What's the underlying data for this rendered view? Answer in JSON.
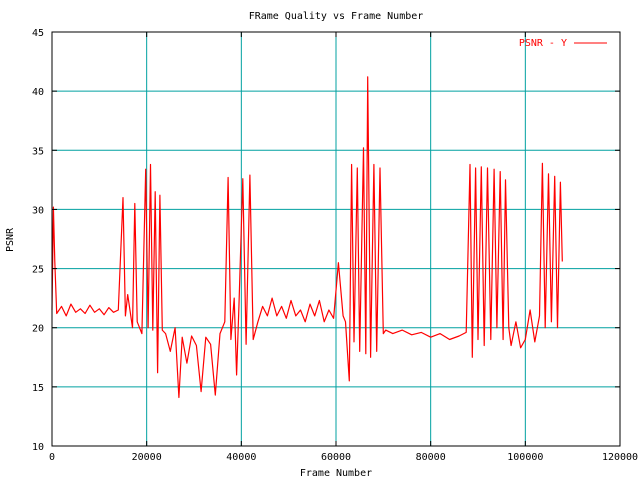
{
  "chart_data": {
    "type": "line",
    "title": "FRame Quality vs Frame Number",
    "xlabel": "Frame Number",
    "ylabel": "PSNR",
    "xlim": [
      0,
      120000
    ],
    "ylim": [
      10,
      45
    ],
    "xticks": [
      0,
      20000,
      40000,
      60000,
      80000,
      100000,
      120000
    ],
    "yticks": [
      10,
      15,
      20,
      25,
      30,
      35,
      40,
      45
    ],
    "grid": true,
    "legend_position": "top-right",
    "series": [
      {
        "name": "PSNR - Y",
        "color": "#ff0000",
        "points": [
          [
            0,
            21.5
          ],
          [
            300,
            30.2
          ],
          [
            600,
            25.6
          ],
          [
            1000,
            21.2
          ],
          [
            2000,
            21.8
          ],
          [
            3000,
            21.0
          ],
          [
            4000,
            22.0
          ],
          [
            5000,
            21.3
          ],
          [
            6000,
            21.6
          ],
          [
            7000,
            21.2
          ],
          [
            8000,
            21.9
          ],
          [
            9000,
            21.3
          ],
          [
            10000,
            21.6
          ],
          [
            11000,
            21.1
          ],
          [
            12000,
            21.7
          ],
          [
            13000,
            21.3
          ],
          [
            14000,
            21.5
          ],
          [
            15000,
            31.0
          ],
          [
            15500,
            21.0
          ],
          [
            16000,
            22.8
          ],
          [
            17000,
            20.0
          ],
          [
            17500,
            30.5
          ],
          [
            18000,
            20.5
          ],
          [
            19000,
            19.5
          ],
          [
            19800,
            33.4
          ],
          [
            20300,
            20.0
          ],
          [
            20800,
            33.8
          ],
          [
            21300,
            19.8
          ],
          [
            21800,
            31.5
          ],
          [
            22300,
            16.2
          ],
          [
            22800,
            31.2
          ],
          [
            23300,
            19.8
          ],
          [
            24000,
            19.5
          ],
          [
            25000,
            18.0
          ],
          [
            26000,
            20.0
          ],
          [
            26800,
            14.1
          ],
          [
            27500,
            19.2
          ],
          [
            28500,
            17.0
          ],
          [
            29500,
            19.3
          ],
          [
            30500,
            18.5
          ],
          [
            31500,
            14.6
          ],
          [
            32500,
            19.2
          ],
          [
            33500,
            18.6
          ],
          [
            34500,
            14.3
          ],
          [
            35500,
            19.5
          ],
          [
            36500,
            20.5
          ],
          [
            37200,
            32.7
          ],
          [
            37800,
            19.0
          ],
          [
            38500,
            22.5
          ],
          [
            39000,
            16.0
          ],
          [
            39500,
            22.0
          ],
          [
            40300,
            32.6
          ],
          [
            41000,
            18.6
          ],
          [
            41800,
            32.9
          ],
          [
            42500,
            19.0
          ],
          [
            43500,
            20.5
          ],
          [
            44500,
            21.8
          ],
          [
            45500,
            21.0
          ],
          [
            46500,
            22.5
          ],
          [
            47500,
            21.0
          ],
          [
            48500,
            21.8
          ],
          [
            49500,
            20.8
          ],
          [
            50500,
            22.3
          ],
          [
            51500,
            21.0
          ],
          [
            52500,
            21.5
          ],
          [
            53500,
            20.5
          ],
          [
            54500,
            22.0
          ],
          [
            55500,
            21.0
          ],
          [
            56500,
            22.3
          ],
          [
            57500,
            20.5
          ],
          [
            58500,
            21.5
          ],
          [
            59500,
            20.8
          ],
          [
            60500,
            25.5
          ],
          [
            61500,
            21.0
          ],
          [
            62000,
            20.5
          ],
          [
            62800,
            15.5
          ],
          [
            63300,
            33.8
          ],
          [
            63800,
            18.8
          ],
          [
            64500,
            33.5
          ],
          [
            65000,
            18.0
          ],
          [
            65800,
            35.2
          ],
          [
            66300,
            17.8
          ],
          [
            66700,
            41.2
          ],
          [
            67300,
            17.5
          ],
          [
            68000,
            33.8
          ],
          [
            68600,
            18.0
          ],
          [
            69300,
            33.5
          ],
          [
            70000,
            19.5
          ],
          [
            70500,
            19.8
          ],
          [
            72000,
            19.5
          ],
          [
            74000,
            19.8
          ],
          [
            76000,
            19.4
          ],
          [
            78000,
            19.6
          ],
          [
            80000,
            19.2
          ],
          [
            82000,
            19.5
          ],
          [
            84000,
            19.0
          ],
          [
            86000,
            19.3
          ],
          [
            87500,
            19.6
          ],
          [
            88300,
            33.8
          ],
          [
            88800,
            17.5
          ],
          [
            89500,
            33.5
          ],
          [
            90000,
            19.0
          ],
          [
            90700,
            33.6
          ],
          [
            91300,
            18.5
          ],
          [
            92000,
            33.5
          ],
          [
            92700,
            19.0
          ],
          [
            93400,
            33.4
          ],
          [
            94000,
            20.0
          ],
          [
            94700,
            33.2
          ],
          [
            95300,
            19.0
          ],
          [
            95800,
            32.5
          ],
          [
            96500,
            20.0
          ],
          [
            97000,
            18.5
          ],
          [
            98000,
            20.5
          ],
          [
            99000,
            18.3
          ],
          [
            100000,
            19.0
          ],
          [
            101000,
            21.5
          ],
          [
            102000,
            18.8
          ],
          [
            103000,
            21.0
          ],
          [
            103600,
            33.9
          ],
          [
            104200,
            20.0
          ],
          [
            104900,
            33.0
          ],
          [
            105500,
            20.5
          ],
          [
            106200,
            32.8
          ],
          [
            106800,
            20.0
          ],
          [
            107400,
            32.3
          ],
          [
            107800,
            25.6
          ]
        ]
      }
    ]
  }
}
